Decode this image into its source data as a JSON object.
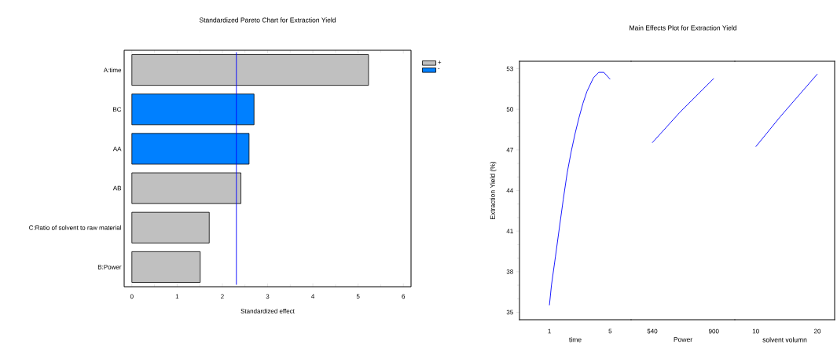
{
  "chart_data": [
    {
      "type": "bar",
      "orientation": "horizontal",
      "title": "Standardized Pareto Chart for Extraction Yield",
      "xlabel": "Standardized effect",
      "categories": [
        "A:time",
        "BC",
        "AA",
        "AB",
        "C:Ratio of solvent to raw material",
        "B:Power"
      ],
      "series": [
        {
          "name": "+",
          "color": "#c0c0c0",
          "values": [
            5.23,
            null,
            null,
            2.41,
            1.71,
            1.51
          ]
        },
        {
          "name": "-",
          "color": "#0080ff",
          "values": [
            null,
            2.7,
            2.59,
            null,
            null,
            null
          ]
        }
      ],
      "xlim": [
        -0.17,
        6.17
      ],
      "xticks": [
        0,
        1,
        2,
        3,
        4,
        5,
        6
      ],
      "ref_lines": [
        {
          "axis": "x",
          "value": 2.31,
          "color": "#0000ff"
        }
      ],
      "legend": "top right",
      "grid": false
    },
    {
      "type": "line",
      "xlabel": "time",
      "ylabel": "Extraction Yield (%)",
      "series": [
        {
          "color": "#0000ff",
          "x": [
            1,
            1.136,
            1.396,
            1.656,
            1.916,
            2.172,
            2.432,
            2.692,
            2.948,
            3.208,
            3.468,
            3.896,
            4.244,
            4.588,
            5
          ],
          "values": [
            35.52,
            37.01,
            39.1,
            41.24,
            43.37,
            45.31,
            46.86,
            48.21,
            49.38,
            50.44,
            51.31,
            52.32,
            52.73,
            52.73,
            52.22
          ]
        }
      ],
      "xlim": [
        -0.97,
        6.38
      ],
      "xticks": [
        1,
        5
      ],
      "ylim": [
        34.45,
        53.55
      ],
      "yticks": [
        35,
        38,
        41,
        44,
        47,
        50,
        53
      ],
      "legend": false,
      "grid": false,
      "marker": "none",
      "line_style": "solid"
    },
    {
      "type": "line",
      "title": "Main Effects Plot for Extraction Yield",
      "xlabel": "Power",
      "series": [
        {
          "color": "#0000ff",
          "x": [
            540,
            700,
            900
          ],
          "values": [
            47.53,
            49.76,
            52.28
          ]
        }
      ],
      "xlim": [
        416,
        1023
      ],
      "xticks": [
        540,
        900
      ],
      "ylim": [
        34.45,
        53.55
      ],
      "tick_labels": "x",
      "legend": false,
      "grid": false,
      "marker": "none",
      "line_style": "solid"
    },
    {
      "type": "line",
      "xlabel": "solvent volumn",
      "series": [
        {
          "color": "#0000ff",
          "x": [
            10,
            14,
            20
          ],
          "values": [
            47.24,
            49.47,
            52.61
          ]
        }
      ],
      "xlim": [
        6.59,
        22.81
      ],
      "xticks": [
        10,
        20
      ],
      "ylim": [
        34.45,
        53.55
      ],
      "tick_labels": "x",
      "legend": false,
      "grid": false,
      "marker": "none",
      "line_style": "solid"
    }
  ]
}
